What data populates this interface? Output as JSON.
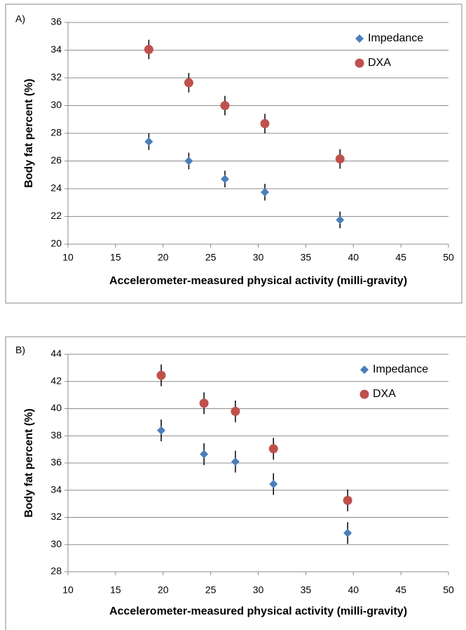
{
  "chart_data": [
    {
      "type": "scatter",
      "panel_label": "A)",
      "xlabel": "Accelerometer-measured physical activity (milli-gravity)",
      "ylabel": "Body fat percent (%)",
      "xlim": [
        10,
        50
      ],
      "xticks": [
        10,
        15,
        20,
        25,
        30,
        35,
        40,
        45,
        50
      ],
      "ylim": [
        20,
        36
      ],
      "yticks": [
        20,
        22,
        24,
        26,
        28,
        30,
        32,
        34,
        36
      ],
      "grid": true,
      "legend": "upper right",
      "series": [
        {
          "name": "Impedance",
          "color": "#4a7ebb",
          "marker": "diamond",
          "x": [
            18.5,
            22.7,
            26.5,
            30.7,
            38.6
          ],
          "values": [
            27.4,
            26.0,
            24.7,
            23.75,
            21.75
          ],
          "errors": [
            0.6,
            0.6,
            0.6,
            0.6,
            0.6
          ]
        },
        {
          "name": "DXA",
          "color": "#c0504d",
          "marker": "circle",
          "x": [
            18.5,
            22.7,
            26.5,
            30.7,
            38.6
          ],
          "values": [
            34.05,
            31.65,
            30.0,
            28.7,
            26.15
          ],
          "errors": [
            0.7,
            0.7,
            0.7,
            0.7,
            0.7
          ]
        }
      ]
    },
    {
      "type": "scatter",
      "panel_label": "B)",
      "xlabel": "Accelerometer-measured physical activity (milli-gravity)",
      "ylabel": "Body fat percent (%)",
      "xlim": [
        10,
        50
      ],
      "xticks": [
        10,
        15,
        20,
        25,
        30,
        35,
        40,
        45,
        50
      ],
      "ylim": [
        28,
        44
      ],
      "yticks": [
        28,
        30,
        32,
        34,
        36,
        38,
        40,
        42,
        44
      ],
      "grid": true,
      "legend": "upper right",
      "series": [
        {
          "name": "Impedance",
          "color": "#4a7ebb",
          "marker": "diamond",
          "x": [
            19.8,
            24.3,
            27.6,
            31.6,
            39.4
          ],
          "values": [
            38.4,
            36.65,
            36.1,
            34.45,
            30.85
          ],
          "errors": [
            0.8,
            0.8,
            0.8,
            0.8,
            0.8
          ]
        },
        {
          "name": "DXA",
          "color": "#c0504d",
          "marker": "circle",
          "x": [
            19.8,
            24.3,
            27.6,
            31.6,
            39.4
          ],
          "values": [
            42.45,
            40.4,
            39.8,
            37.05,
            33.25
          ],
          "errors": [
            0.8,
            0.8,
            0.8,
            0.8,
            0.8
          ]
        }
      ]
    }
  ]
}
